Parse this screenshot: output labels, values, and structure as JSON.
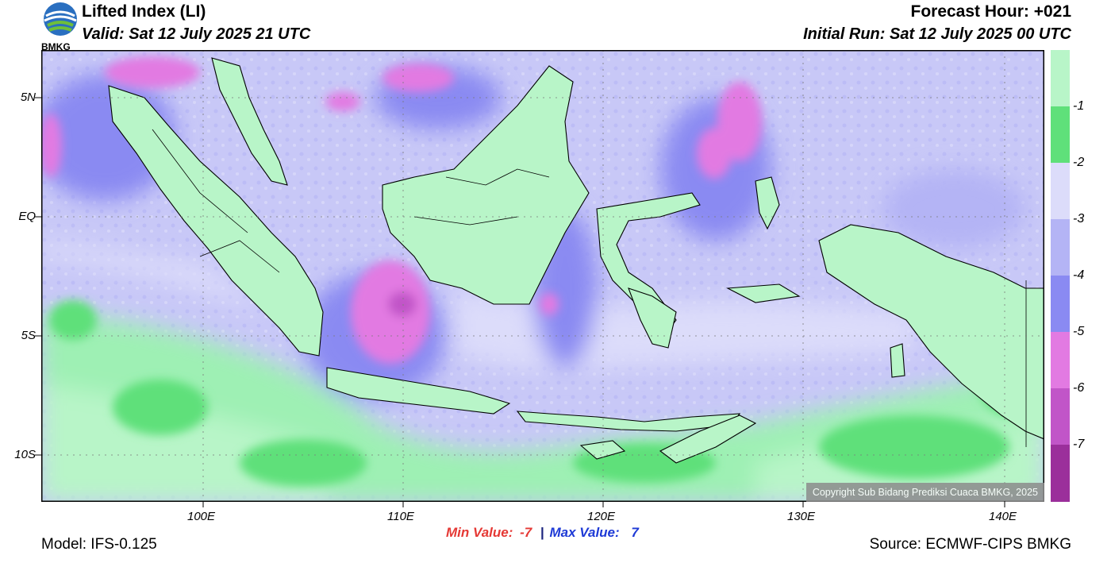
{
  "header": {
    "logo_text": "BMKG",
    "title": "Lifted Index (LI)",
    "valid": "Valid: Sat 12 July 2025 21 UTC",
    "forecast_hour": "Forecast Hour: +021",
    "initial_run": "Initial Run: Sat 12 July 2025 00 UTC"
  },
  "map": {
    "lat_labels": [
      "5N",
      "EQ",
      "5S",
      "10S"
    ],
    "lon_labels": [
      "100E",
      "110E",
      "120E",
      "130E",
      "140E"
    ],
    "copyright": "Copyright Sub Bidang Prediksi Cuaca BMKG, 2025"
  },
  "colorbar": {
    "labels": [
      "-1",
      "-2",
      "-3",
      "-4",
      "-5",
      "-6",
      "-7"
    ],
    "colors": [
      "#b8f5c8",
      "#5fe07a",
      "#dcdcfa",
      "#b4b4f5",
      "#8a8af2",
      "#e27ae2",
      "#c155c8",
      "#9b2f9b"
    ]
  },
  "footer": {
    "model": "Model: IFS-0.125",
    "min_label": "Min Value:",
    "min_value": "-7",
    "separator": "|",
    "max_label": "Max Value:",
    "max_value": "7",
    "source": "Source: ECMWF-CIPS BMKG"
  }
}
